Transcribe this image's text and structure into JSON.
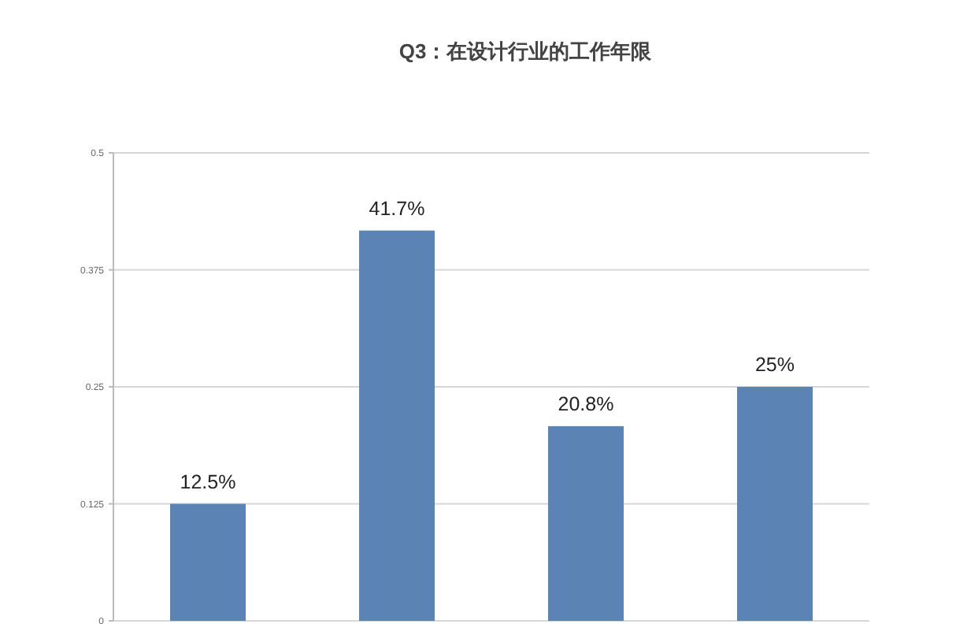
{
  "chart_data": {
    "type": "bar",
    "title": "Q3：在设计行业的工作年限",
    "categories": [
      null,
      null,
      null,
      null
    ],
    "values": [
      0.125,
      0.417,
      0.208,
      0.25
    ],
    "value_labels": [
      "12.5%",
      "41.7%",
      "20.8%",
      "25%"
    ],
    "color": "#5b83b4",
    "ylim": [
      0,
      0.5
    ],
    "yticks": [
      0,
      0.125,
      0.25,
      0.375,
      0.5
    ],
    "grid": "y"
  }
}
